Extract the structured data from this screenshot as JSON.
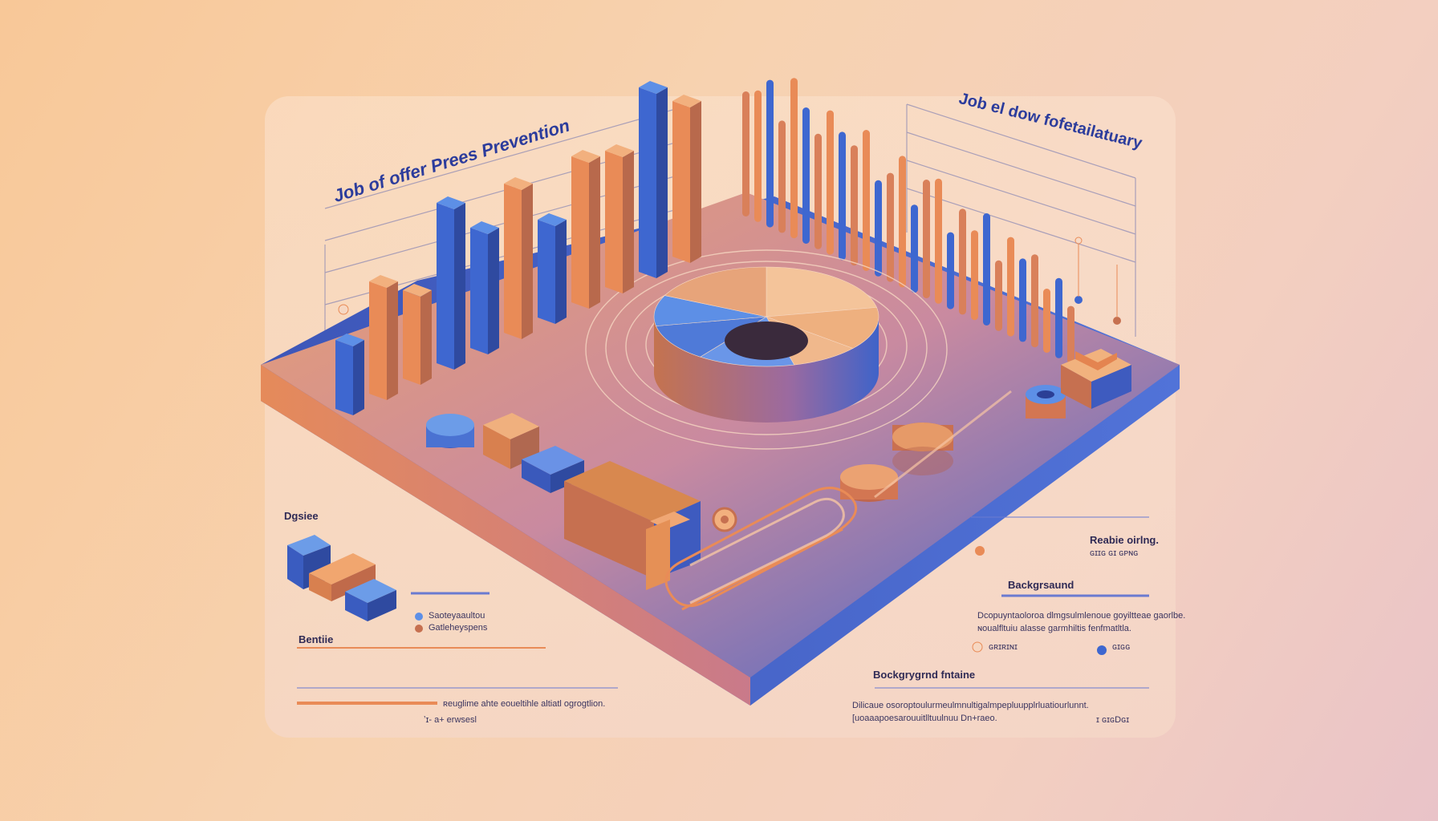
{
  "titles": {
    "left": "Job of offer Prees Prevention",
    "right": "Job el dow fofetailatuary"
  },
  "labels": {
    "design": "Dgsiee",
    "bottom_left_heading": "Bentiie",
    "bottom_left_caption": "ʀeuglime ahte eoueltihle altiatl ogrogtlion.",
    "bottom_left_code": "ʼɪ- a+ erwsesl",
    "legend_item_1": "Saoteyaaultou",
    "legend_item_2": "Gatleheyspens",
    "right_top_label": "Reabie oirlng.",
    "right_top_code": "ɢɪɪɢ ɢɪ ɢᴘɴɢ",
    "right_heading": "Backgrsaund",
    "right_body_1": "Dcopuyntaoloroa dlmgsulmlenoue goyiltteae gaorlbe.",
    "right_body_2": "ɴoualfltuiu alasse garmhiltis fenfmatltla.",
    "right_option_1": "ɢʀɪʀɪɴɪ",
    "right_option_2": "ɢɪɢɢ",
    "bottom_right_heading": "Bockgrygrnd fntaine",
    "bottom_right_body_1": "Dilicaue osoroptoulurmeulmnultigalmpepluupplrluatiourlunnt.",
    "bottom_right_body_2": "[uoaaapoesarouuitlltuulnuu Dn+raeo.",
    "bottom_right_code": "ɪ ɢɪɢDɢɪ"
  },
  "colors": {
    "blue": "#3e67d0",
    "blue_light": "#5d8fe6",
    "orange": "#e98b57",
    "orange_light": "#f2b07e",
    "navy": "#2c3c9c"
  },
  "chart_data": {
    "type": "bar",
    "front_bars": [
      28,
      55,
      40,
      85,
      60,
      78,
      46,
      76,
      70,
      100,
      82
    ],
    "back_bars": [
      78,
      82,
      92,
      70,
      100,
      85,
      72,
      90,
      80,
      75,
      88,
      60,
      68,
      82,
      55,
      74,
      78,
      48,
      66,
      56,
      70,
      44,
      62,
      52,
      58,
      40,
      50,
      36
    ],
    "donut_slices": [
      22,
      14,
      10,
      14,
      12,
      10,
      18
    ]
  }
}
